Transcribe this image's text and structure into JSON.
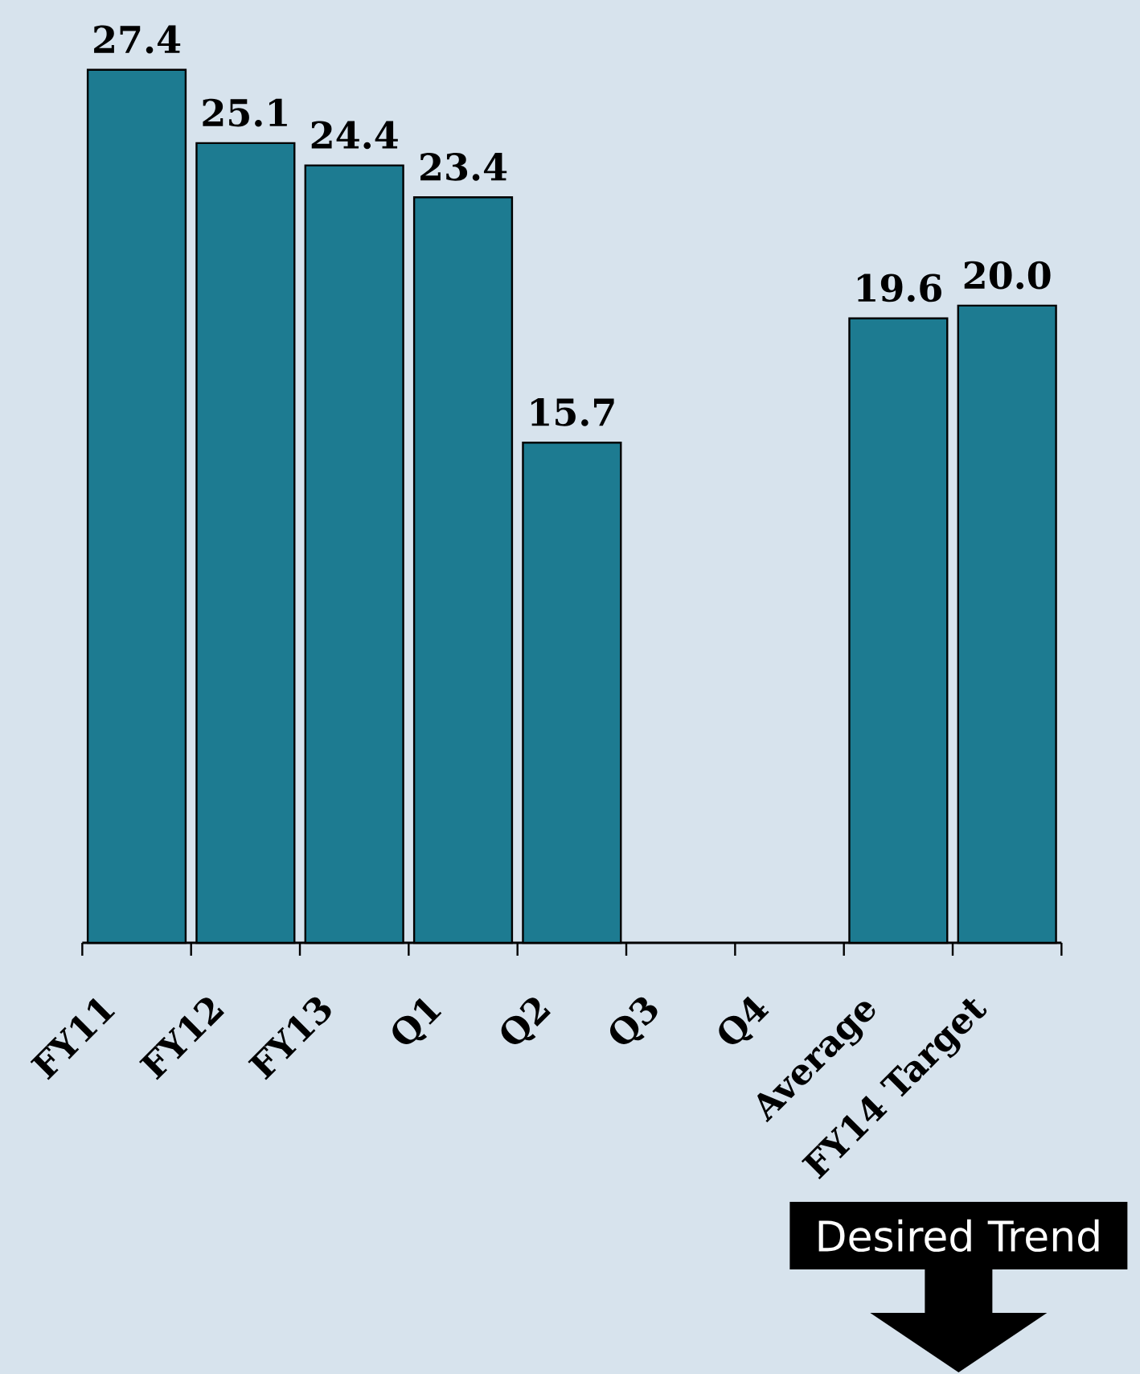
{
  "chart_data": {
    "type": "bar",
    "categories": [
      "FY11",
      "FY12",
      "FY13",
      "Q1",
      "Q2",
      "Q3",
      "Q4",
      "Average",
      "FY14 Target"
    ],
    "values": [
      27.4,
      25.1,
      24.4,
      23.4,
      15.7,
      null,
      null,
      19.6,
      20.0
    ],
    "value_labels": [
      "27.4",
      "25.1",
      "24.4",
      "23.4",
      "15.7",
      null,
      null,
      "19.6",
      "20.0"
    ],
    "color": "#1d7b91",
    "annotations": [
      "Desired Trend"
    ]
  }
}
